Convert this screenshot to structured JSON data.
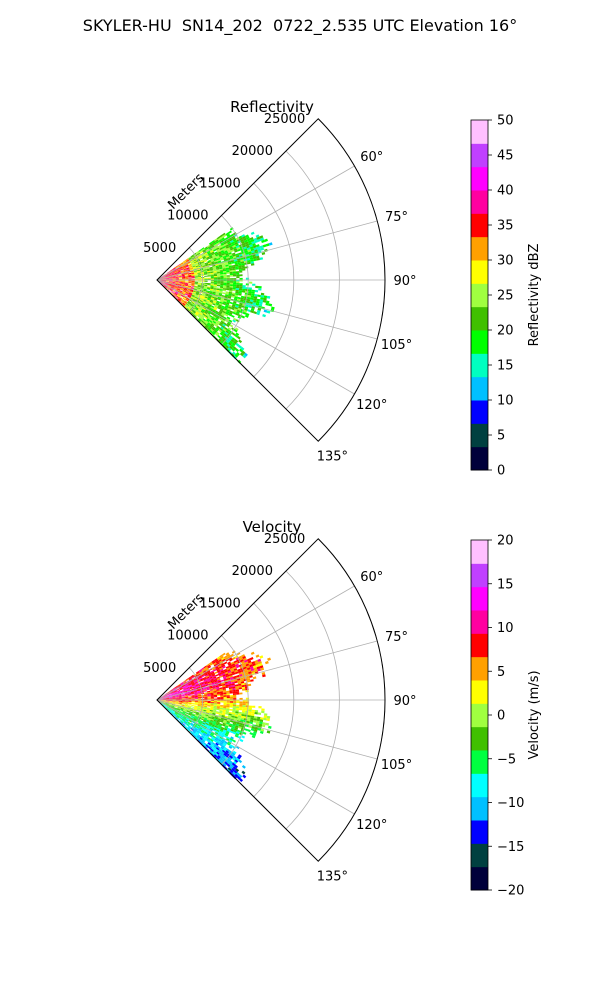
{
  "figure": {
    "suptitle": "SKYLER-HU  SN14_202  0722_2.535 UTC Elevation 16°"
  },
  "chart_data": [
    {
      "type": "heatmap",
      "title": "Reflectivity",
      "projection": "polar sector (azimuth wedge)",
      "radial_axis": {
        "label": "Meters",
        "ticks": [
          5000,
          10000,
          15000,
          20000,
          25000
        ],
        "range": [
          0,
          25000
        ]
      },
      "azimuth_axis": {
        "ticks": [
          60,
          75,
          90,
          105,
          120,
          135
        ],
        "tick_labels": [
          "60°",
          "75°",
          "90°",
          "105°",
          "120°",
          "135°"
        ],
        "range": [
          45,
          135
        ]
      },
      "grid": true,
      "data_extent": {
        "azimuth_range": [
          55,
          135
        ],
        "max_range_m": 13000
      },
      "colorbar": {
        "label": "Reflectivity dBZ",
        "min": 0,
        "max": 50,
        "ticks": [
          0,
          5,
          10,
          15,
          20,
          25,
          30,
          35,
          40,
          45,
          50
        ],
        "tick_labels": [
          "0",
          "5",
          "10",
          "15",
          "20",
          "25",
          "30",
          "35",
          "40",
          "45",
          "50"
        ],
        "stops": [
          "#00003a",
          "#004040",
          "#0000ff",
          "#00c0ff",
          "#00ffc0",
          "#00ff00",
          "#40c000",
          "#a0ff40",
          "#ffff00",
          "#ffa000",
          "#ff0000",
          "#ff00a0",
          "#ff00ff",
          "#c040ff",
          "#ffc0ff"
        ]
      }
    },
    {
      "type": "heatmap",
      "title": "Velocity",
      "projection": "polar sector (azimuth wedge)",
      "radial_axis": {
        "label": "Meters",
        "ticks": [
          5000,
          10000,
          15000,
          20000,
          25000
        ],
        "range": [
          0,
          25000
        ]
      },
      "azimuth_axis": {
        "ticks": [
          60,
          75,
          90,
          105,
          120,
          135
        ],
        "tick_labels": [
          "60°",
          "75°",
          "90°",
          "105°",
          "120°",
          "135°"
        ],
        "range": [
          45,
          135
        ]
      },
      "grid": true,
      "data_extent": {
        "azimuth_range": [
          55,
          135
        ],
        "max_range_m": 13000
      },
      "colorbar": {
        "label": "Velocity (m/s)",
        "min": -20,
        "max": 20,
        "ticks": [
          -20,
          -15,
          -10,
          -5,
          0,
          5,
          10,
          15,
          20
        ],
        "tick_labels": [
          "−20",
          "−15",
          "−10",
          "−5",
          "0",
          "5",
          "10",
          "15",
          "20"
        ],
        "stops": [
          "#00003a",
          "#004040",
          "#0000ff",
          "#00c0ff",
          "#00ffff",
          "#00ff40",
          "#40c000",
          "#a0ff40",
          "#ffff00",
          "#ffa000",
          "#ff0000",
          "#ff00a0",
          "#ff00ff",
          "#c040ff",
          "#ffc0ff"
        ]
      }
    }
  ]
}
